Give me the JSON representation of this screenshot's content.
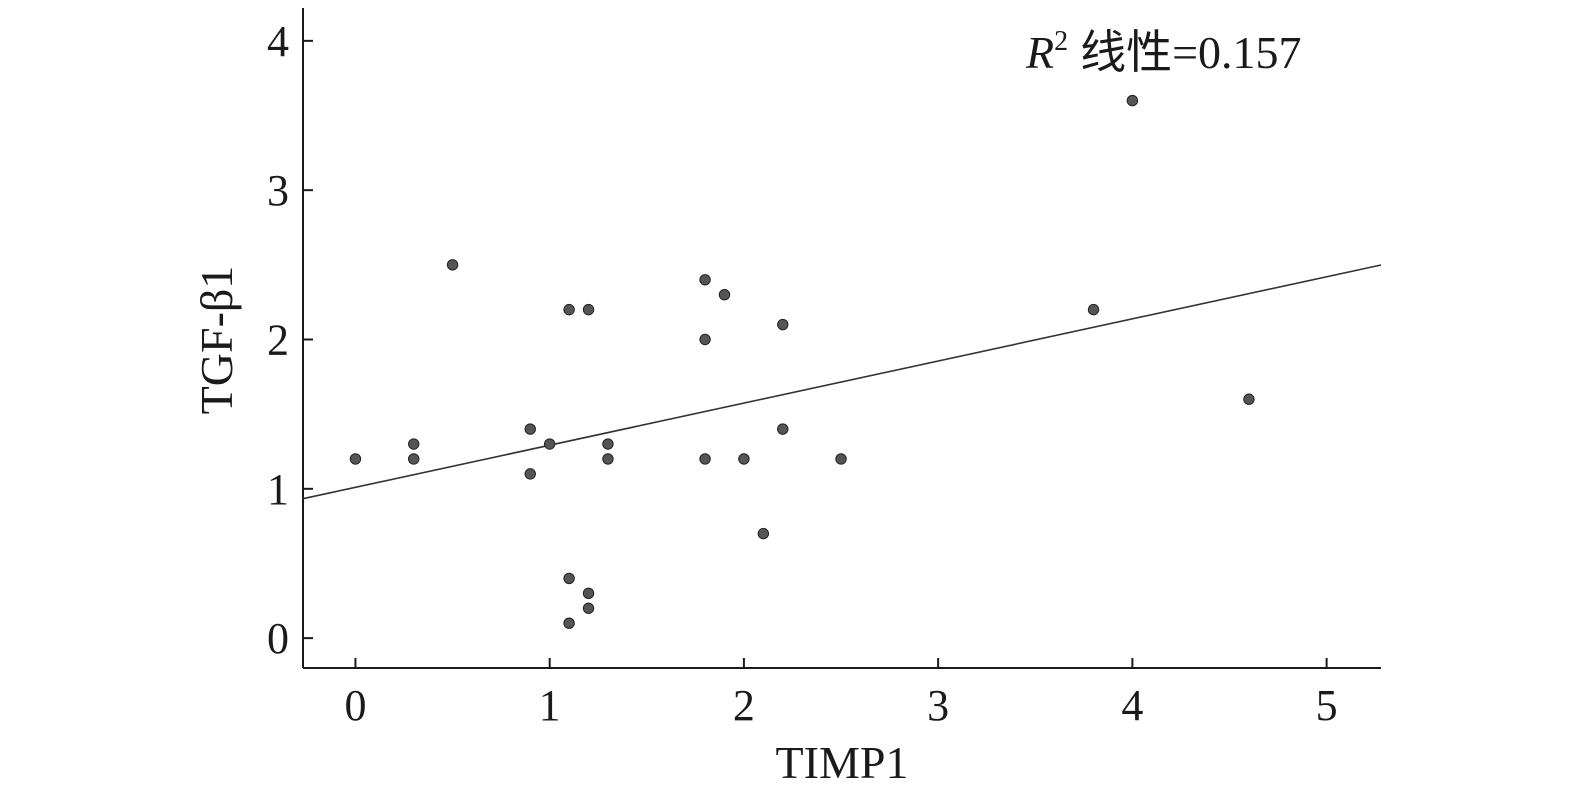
{
  "chart_data": {
    "type": "scatter",
    "title": "",
    "xlabel": "TIMP1",
    "ylabel": "TGF-β1",
    "annotation": {
      "r_symbol": "R",
      "superscript": "2",
      "text": "线性=0.157"
    },
    "xlim": [
      -0.27,
      5.28
    ],
    "ylim": [
      -0.2,
      4.22
    ],
    "xticks": [
      0,
      1,
      2,
      3,
      4,
      5
    ],
    "yticks": [
      0,
      1,
      2,
      3,
      4
    ],
    "grid": false,
    "points": [
      {
        "x": 0.0,
        "y": 1.2
      },
      {
        "x": 0.3,
        "y": 1.3
      },
      {
        "x": 0.3,
        "y": 1.2
      },
      {
        "x": 0.5,
        "y": 2.5
      },
      {
        "x": 0.9,
        "y": 1.4
      },
      {
        "x": 0.9,
        "y": 1.1
      },
      {
        "x": 1.0,
        "y": 1.3
      },
      {
        "x": 1.1,
        "y": 2.2
      },
      {
        "x": 1.2,
        "y": 2.2
      },
      {
        "x": 1.3,
        "y": 1.3
      },
      {
        "x": 1.3,
        "y": 1.2
      },
      {
        "x": 1.1,
        "y": 0.4
      },
      {
        "x": 1.2,
        "y": 0.3
      },
      {
        "x": 1.2,
        "y": 0.2
      },
      {
        "x": 1.1,
        "y": 0.1
      },
      {
        "x": 1.8,
        "y": 2.4
      },
      {
        "x": 1.9,
        "y": 2.3
      },
      {
        "x": 1.8,
        "y": 2.0
      },
      {
        "x": 1.8,
        "y": 1.2
      },
      {
        "x": 2.0,
        "y": 1.2
      },
      {
        "x": 2.1,
        "y": 0.7
      },
      {
        "x": 2.2,
        "y": 2.1
      },
      {
        "x": 2.2,
        "y": 1.4
      },
      {
        "x": 2.5,
        "y": 1.2
      },
      {
        "x": 3.8,
        "y": 2.2
      },
      {
        "x": 4.0,
        "y": 3.6
      },
      {
        "x": 4.6,
        "y": 1.6
      }
    ],
    "fit_line": {
      "intercept": 1.01,
      "slope": 0.282
    },
    "marker_color": "#555555",
    "line_color": "#333333"
  }
}
